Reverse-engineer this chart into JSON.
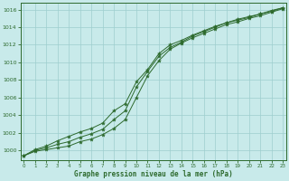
{
  "x": [
    0,
    1,
    2,
    3,
    4,
    5,
    6,
    7,
    8,
    9,
    10,
    11,
    12,
    13,
    14,
    15,
    16,
    17,
    18,
    19,
    20,
    21,
    22,
    23
  ],
  "line1": [
    999.4,
    999.9,
    1000.1,
    1000.3,
    1000.5,
    1001.0,
    1001.3,
    1001.8,
    1002.5,
    1003.5,
    1006.0,
    1008.5,
    1010.2,
    1011.5,
    1012.2,
    1012.8,
    1013.3,
    1013.8,
    1014.3,
    1014.6,
    1015.0,
    1015.3,
    1015.7,
    1016.1
  ],
  "line2": [
    999.4,
    1000.0,
    1000.3,
    1000.7,
    1001.0,
    1001.5,
    1001.9,
    1002.4,
    1003.5,
    1004.5,
    1007.2,
    1009.0,
    1010.7,
    1011.7,
    1012.3,
    1013.0,
    1013.5,
    1014.0,
    1014.5,
    1014.8,
    1015.1,
    1015.5,
    1015.8,
    1016.2
  ],
  "line3": [
    999.4,
    1000.1,
    1000.5,
    1001.1,
    1001.6,
    1002.1,
    1002.5,
    1003.1,
    1004.5,
    1005.3,
    1007.8,
    1009.2,
    1011.0,
    1012.0,
    1012.5,
    1013.1,
    1013.6,
    1014.1,
    1014.5,
    1014.9,
    1015.2,
    1015.5,
    1015.9,
    1016.2
  ],
  "line_color": "#2d6a2d",
  "bg_color": "#c8eaea",
  "grid_color": "#9ecece",
  "xlabel": "Graphe pression niveau de la mer (hPa)",
  "ylim": [
    998.9,
    1016.8
  ],
  "xlim": [
    -0.3,
    23.3
  ],
  "yticks": [
    1000,
    1002,
    1004,
    1006,
    1008,
    1010,
    1012,
    1014,
    1016
  ],
  "xticks": [
    0,
    1,
    2,
    3,
    4,
    5,
    6,
    7,
    8,
    9,
    10,
    11,
    12,
    13,
    14,
    15,
    16,
    17,
    18,
    19,
    20,
    21,
    22,
    23
  ]
}
